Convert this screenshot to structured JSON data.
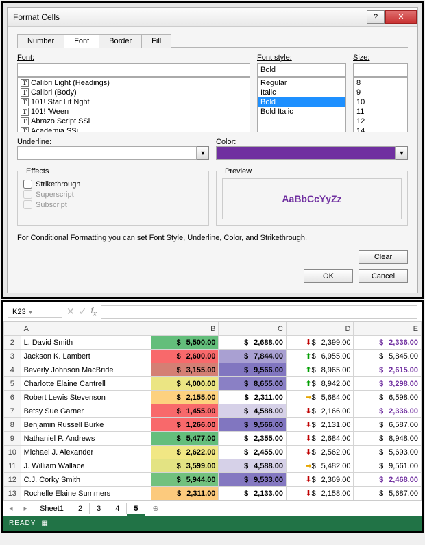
{
  "dialog": {
    "title": "Format Cells",
    "tabs": [
      "Number",
      "Font",
      "Border",
      "Fill"
    ],
    "active_tab": 1,
    "font_label": "Font:",
    "font_value": "",
    "fonts": [
      "Calibri Light (Headings)",
      "Calibri (Body)",
      "101! Star Lit Nght",
      "101! 'Ween",
      "Abrazo Script SSi",
      "Academia SSi"
    ],
    "style_label": "Font style:",
    "style_value": "Bold",
    "styles": [
      "Regular",
      "Italic",
      "Bold",
      "Bold Italic"
    ],
    "style_selected": 2,
    "size_label": "Size:",
    "size_value": "",
    "sizes": [
      "8",
      "9",
      "10",
      "11",
      "12",
      "14"
    ],
    "underline_label": "Underline:",
    "color_label": "Color:",
    "color_hex": "#7030a0",
    "effects_label": "Effects",
    "strike_label": "Strikethrough",
    "super_label": "Superscript",
    "sub_label": "Subscript",
    "preview_label": "Preview",
    "preview_text": "AaBbCcYyZz",
    "hint": "For Conditional Formatting you can set Font Style, Underline, Color, and Strikethrough.",
    "clear_btn": "Clear",
    "ok_btn": "OK",
    "cancel_btn": "Cancel"
  },
  "sheet": {
    "name_box": "K23",
    "columns": [
      "A",
      "B",
      "C",
      "D",
      "E"
    ],
    "bcolors": [
      "#63be7b",
      "#f8696b",
      "#d47f74",
      "#ebe583",
      "#fdd17f",
      "#f8696b",
      "#f8696b",
      "#64be7c",
      "#f1e784",
      "#e3e383",
      "#72c17e",
      "#fcca7d"
    ],
    "ccolors": [
      "#ffffff",
      "#a9a0d2",
      "#8176c0",
      "#8a80c5",
      "#ffffff",
      "#d6d1e8",
      "#8176c0",
      "#ffffff",
      "#ffffff",
      "#d6d1e8",
      "#8478c1",
      "#ffffff"
    ],
    "rows": [
      {
        "n": 2,
        "a": "L. David Smith",
        "b": "5,500.00",
        "c": "2,688.00",
        "d": "2,399.00",
        "e": "2,336.00",
        "arr": "dn",
        "eh": true
      },
      {
        "n": 3,
        "a": "Jackson K. Lambert",
        "b": "2,600.00",
        "c": "7,844.00",
        "d": "6,955.00",
        "e": "5,845.00",
        "arr": "up",
        "eh": false
      },
      {
        "n": 4,
        "a": "Beverly Johnson MacBride",
        "b": "3,155.00",
        "c": "9,566.00",
        "d": "8,965.00",
        "e": "2,615.00",
        "arr": "up",
        "eh": true
      },
      {
        "n": 5,
        "a": "Charlotte Elaine Cantrell",
        "b": "4,000.00",
        "c": "8,655.00",
        "d": "8,942.00",
        "e": "3,298.00",
        "arr": "up",
        "eh": true
      },
      {
        "n": 6,
        "a": "Robert Lewis Stevenson",
        "b": "2,155.00",
        "c": "2,311.00",
        "d": "5,684.00",
        "e": "6,598.00",
        "arr": "rt",
        "eh": false
      },
      {
        "n": 7,
        "a": "Betsy Sue Garner",
        "b": "1,455.00",
        "c": "4,588.00",
        "d": "2,166.00",
        "e": "2,336.00",
        "arr": "dn",
        "eh": true
      },
      {
        "n": 8,
        "a": "Benjamin Russell Burke",
        "b": "1,266.00",
        "c": "9,566.00",
        "d": "2,131.00",
        "e": "6,587.00",
        "arr": "dn",
        "eh": false
      },
      {
        "n": 9,
        "a": "Nathaniel P. Andrews",
        "b": "5,477.00",
        "c": "2,355.00",
        "d": "2,684.00",
        "e": "8,948.00",
        "arr": "dn",
        "eh": false
      },
      {
        "n": 10,
        "a": "Michael J. Alexander",
        "b": "2,622.00",
        "c": "2,455.00",
        "d": "2,562.00",
        "e": "5,693.00",
        "arr": "dn",
        "eh": false
      },
      {
        "n": 11,
        "a": "J. William Wallace",
        "b": "3,599.00",
        "c": "4,588.00",
        "d": "5,482.00",
        "e": "9,561.00",
        "arr": "rt",
        "eh": false
      },
      {
        "n": 12,
        "a": "C.J. Corky Smith",
        "b": "5,944.00",
        "c": "9,533.00",
        "d": "2,369.00",
        "e": "2,468.00",
        "arr": "dn",
        "eh": true
      },
      {
        "n": 13,
        "a": "Rochelle Elaine Summers",
        "b": "2,311.00",
        "c": "2,133.00",
        "d": "2,158.00",
        "e": "5,687.00",
        "arr": "dn",
        "eh": false
      }
    ],
    "sheet_tabs": [
      "Sheet1",
      "2",
      "3",
      "4",
      "5"
    ],
    "active_sheet": 4,
    "status": "READY"
  }
}
